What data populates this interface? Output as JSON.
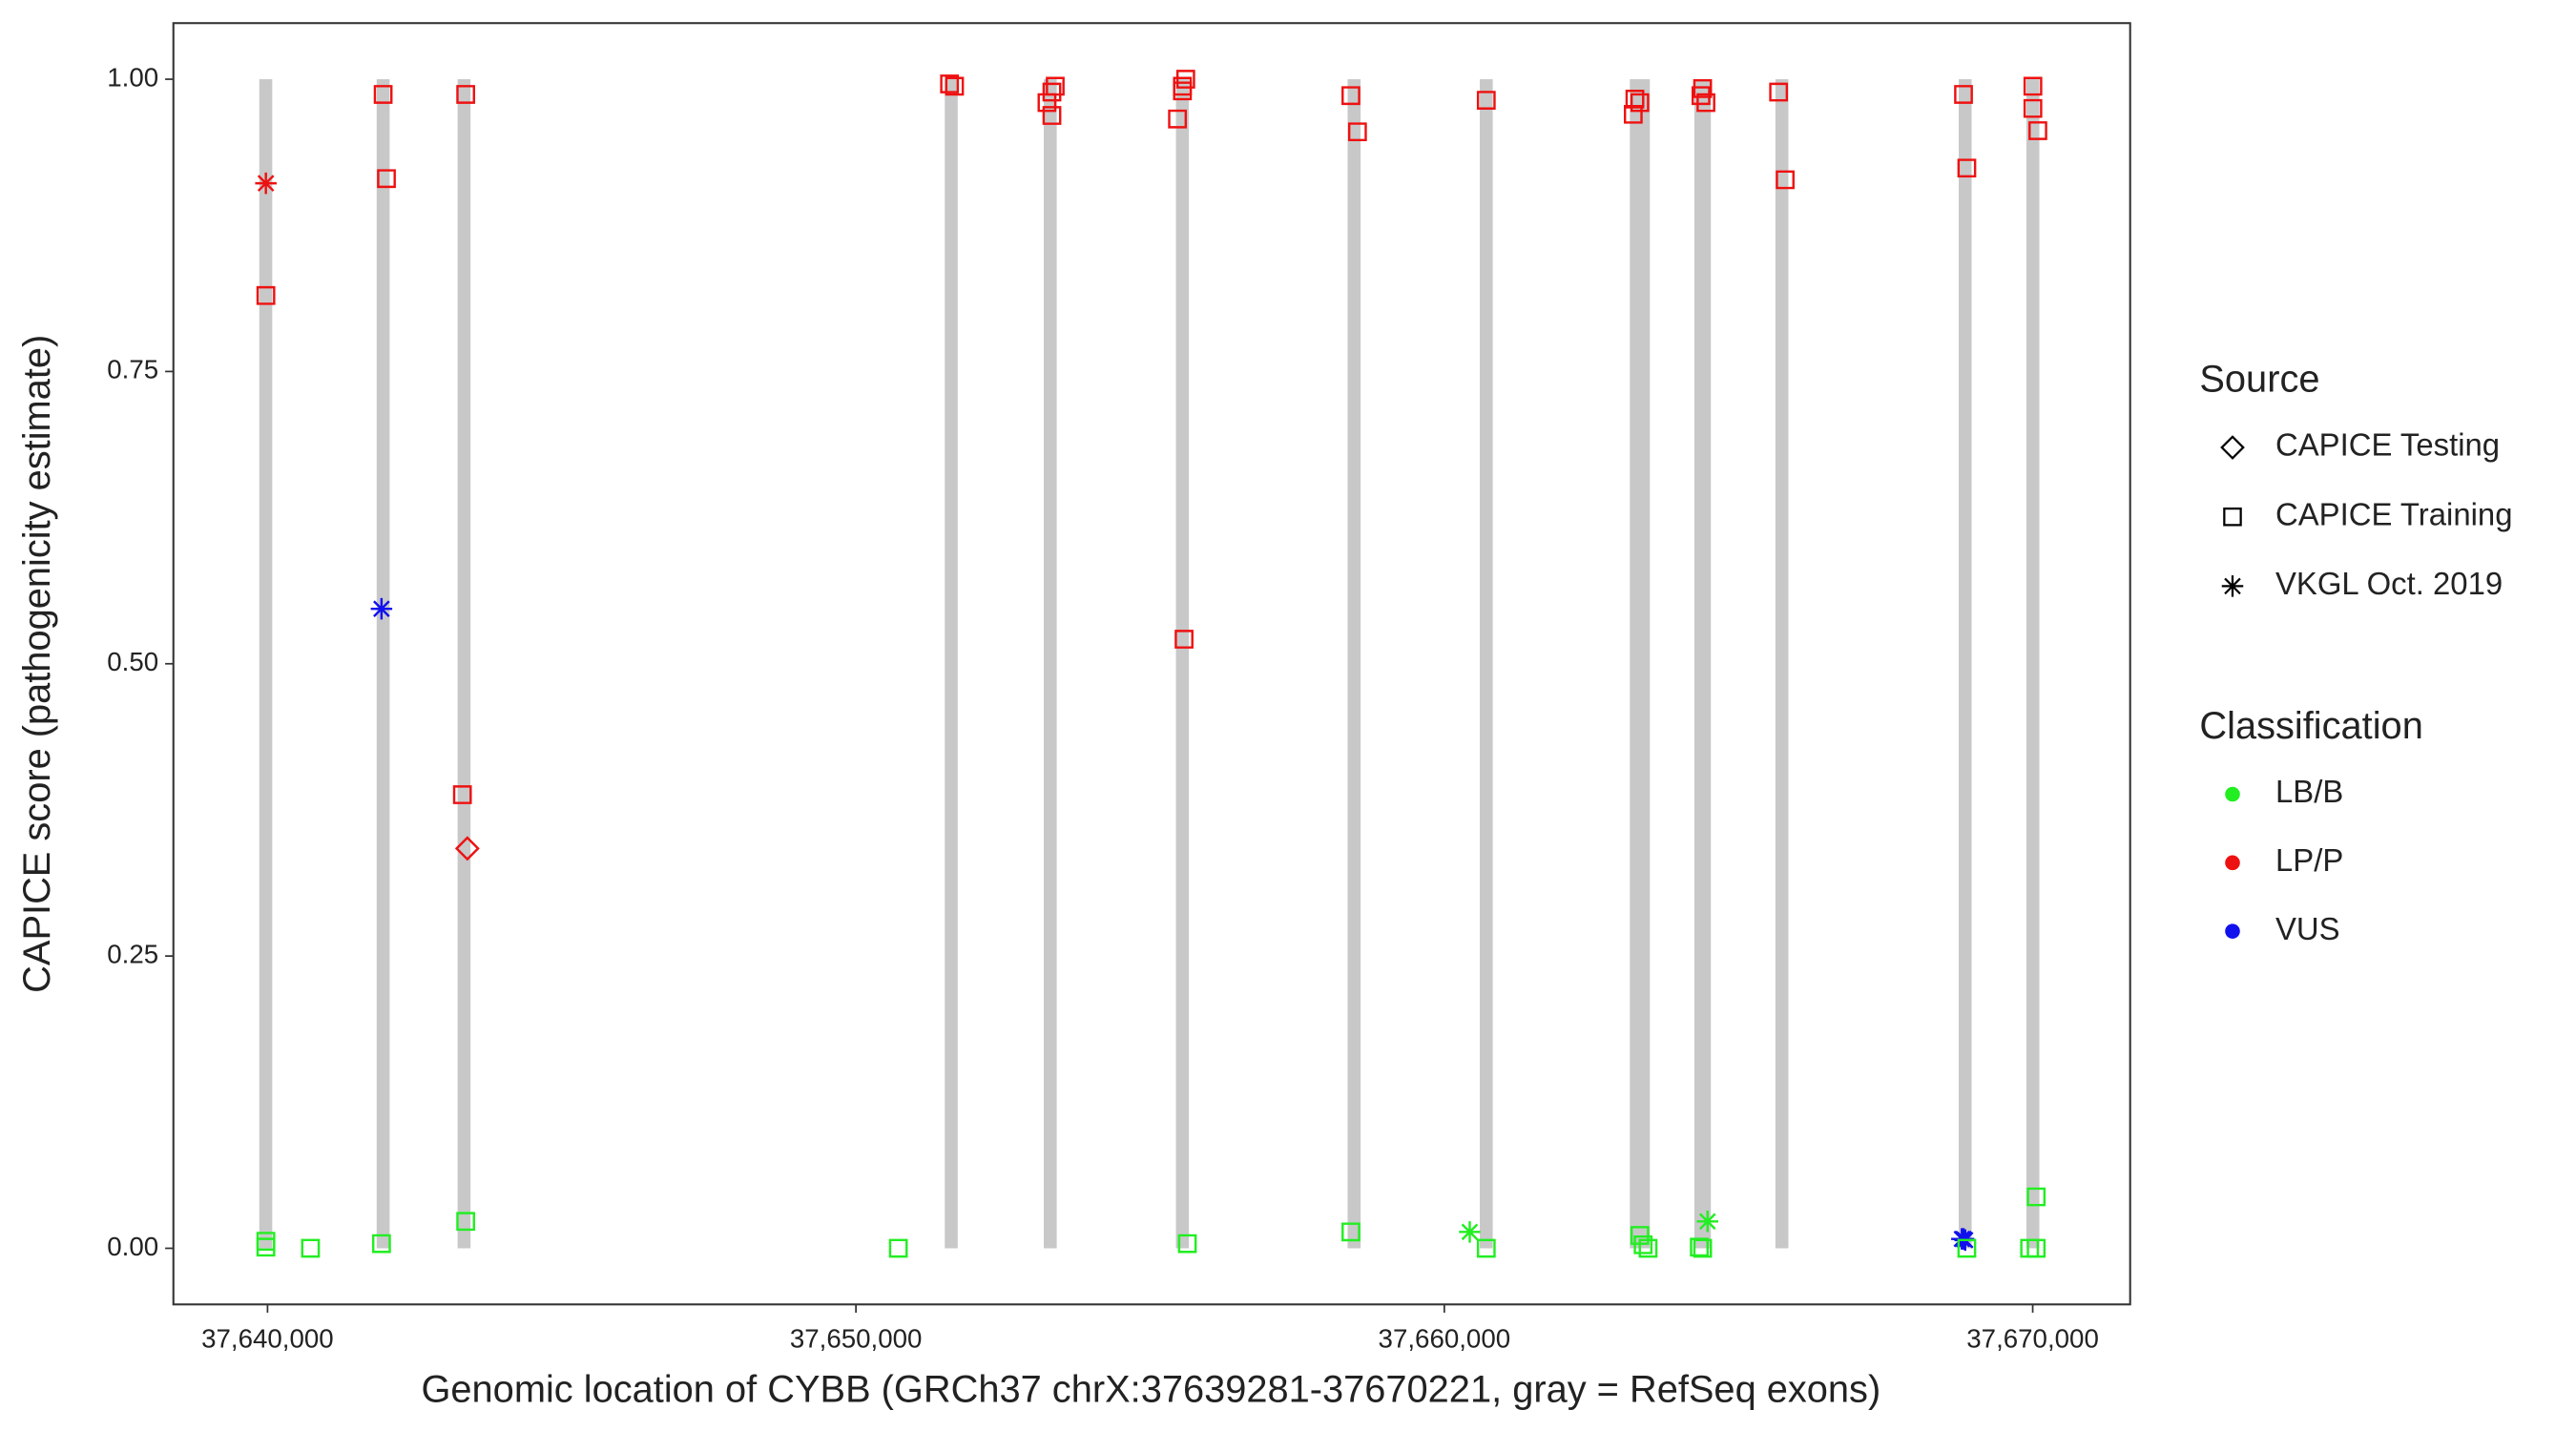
{
  "chart_data": {
    "type": "scatter",
    "x_label": "Genomic location of CYBB (GRCh37 chrX:37639281-37670221, gray = RefSeq exons)",
    "y_label": "CAPICE score (pathogenicity estimate)",
    "xlim": [
      37638400,
      37671656
    ],
    "ylim": [
      -0.048,
      1.048
    ],
    "xticks": [
      {
        "value": 37640000,
        "label": "37,640,000"
      },
      {
        "value": 37650000,
        "label": "37,650,000"
      },
      {
        "value": 37660000,
        "label": "37,660,000"
      },
      {
        "value": 37670000,
        "label": "37,670,000"
      }
    ],
    "yticks": [
      {
        "value": 0,
        "label": "0.00"
      },
      {
        "value": 0.25,
        "label": "0.25"
      },
      {
        "value": 0.5,
        "label": "0.50"
      },
      {
        "value": 0.75,
        "label": "0.75"
      },
      {
        "value": 1,
        "label": "1.00"
      }
    ],
    "exons": {
      "color": "#c8c8c8",
      "starts": [
        37639860,
        37641855,
        37643230,
        37651510,
        37653193,
        37655439,
        37658357,
        37660603,
        37663153,
        37664250,
        37665627,
        37668742,
        37669893
      ],
      "ends": [
        37640080,
        37642075,
        37643450,
        37651730,
        37653413,
        37655659,
        37658577,
        37660823,
        37663493,
        37664530,
        37665847,
        37668962,
        37670113
      ]
    },
    "legend_source_title": "Source",
    "sources": [
      {
        "name": "CAPICE Testing",
        "shape": "diamond"
      },
      {
        "name": "CAPICE Training",
        "shape": "square"
      },
      {
        "name": "VKGL Oct. 2019",
        "shape": "star"
      }
    ],
    "legend_class_title": "Classification",
    "classifications": [
      {
        "name": "LB/B",
        "color": "#22ee22"
      },
      {
        "name": "LP/P",
        "color": "#ee1111"
      },
      {
        "name": "VUS",
        "color": "#1111ee"
      }
    ],
    "series": [
      {
        "source": "CAPICE Training",
        "classification": "LP/P",
        "x": [
          37639972,
          37641965,
          37642021,
          37643368,
          37643312,
          37651591,
          37651676,
          37653247,
          37653331,
          37653387,
          37653331,
          37655465,
          37655549,
          37655605,
          37655549,
          37655577,
          37658412,
          37658524,
          37660713,
          37663239,
          37663211,
          37663323,
          37664362,
          37664390,
          37664446,
          37665681,
          37665793,
          37668824,
          37668880,
          37670003,
          37670003,
          37670087
        ],
        "y": [
          0.815,
          0.987,
          0.915,
          0.987,
          0.388,
          0.996,
          0.994,
          0.98,
          0.989,
          0.994,
          0.969,
          0.966,
          0.994,
          1.0,
          0.99,
          0.521,
          0.986,
          0.955,
          0.982,
          0.983,
          0.97,
          0.98,
          0.986,
          0.992,
          0.98,
          0.989,
          0.914,
          0.987,
          0.924,
          0.994,
          0.975,
          0.956
        ]
      },
      {
        "source": "CAPICE Testing",
        "classification": "LP/P",
        "x": [
          37643396
        ],
        "y": [
          0.342
        ]
      },
      {
        "source": "VKGL Oct. 2019",
        "classification": "LP/P",
        "x": [
          37639972
        ],
        "y": [
          0.911
        ]
      },
      {
        "source": "VKGL Oct. 2019",
        "classification": "VUS",
        "x": [
          37641937,
          37668824,
          37668852,
          37668796
        ],
        "y": [
          0.547,
          0.008,
          0.007,
          0.008
        ]
      },
      {
        "source": "CAPICE Training",
        "classification": "LB/B",
        "x": [
          37639972,
          37639972,
          37640730,
          37641937,
          37643368,
          37650721,
          37655633,
          37658412,
          37660713,
          37663323,
          37663379,
          37663463,
          37664334,
          37664390,
          37668880,
          37669947,
          37670059,
          37670059
        ],
        "y": [
          0.006,
          0.001,
          0.0,
          0.004,
          0.023,
          0.0,
          0.004,
          0.014,
          0.0,
          0.011,
          0.003,
          0.0,
          0.001,
          0.0,
          0.0,
          0.0,
          0.0,
          0.044
        ]
      },
      {
        "source": "VKGL Oct. 2019",
        "classification": "LB/B",
        "x": [
          37660432,
          37664474
        ],
        "y": [
          0.014,
          0.023
        ]
      }
    ]
  }
}
